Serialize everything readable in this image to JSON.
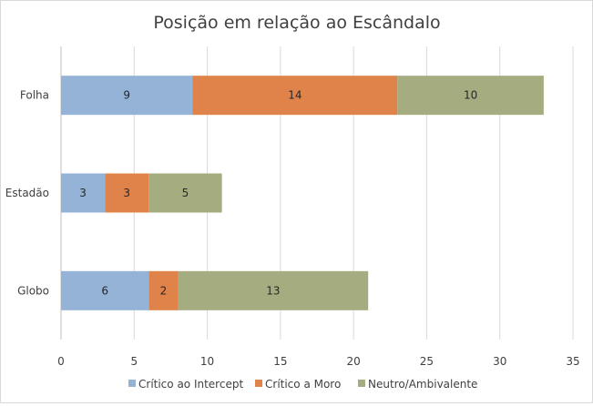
{
  "chart_data": {
    "type": "bar",
    "orientation": "horizontal",
    "stacked": true,
    "title": "Posição em relação ao Escândalo",
    "categories": [
      "Folha",
      "Estadão",
      "Globo"
    ],
    "series": [
      {
        "name": "Crítico ao Intercept",
        "values": [
          9,
          3,
          6
        ],
        "color": "#95B3D7"
      },
      {
        "name": "Crítico a Moro",
        "values": [
          14,
          3,
          2
        ],
        "color": "#E0834A"
      },
      {
        "name": "Neutro/Ambivalente",
        "values": [
          10,
          5,
          13
        ],
        "color": "#A5AD80"
      }
    ],
    "xlim": [
      0,
      35
    ],
    "xticks": [
      0,
      5,
      10,
      15,
      20,
      25,
      30,
      35
    ],
    "grid": true,
    "legend": "bottom",
    "data_labels": true
  }
}
